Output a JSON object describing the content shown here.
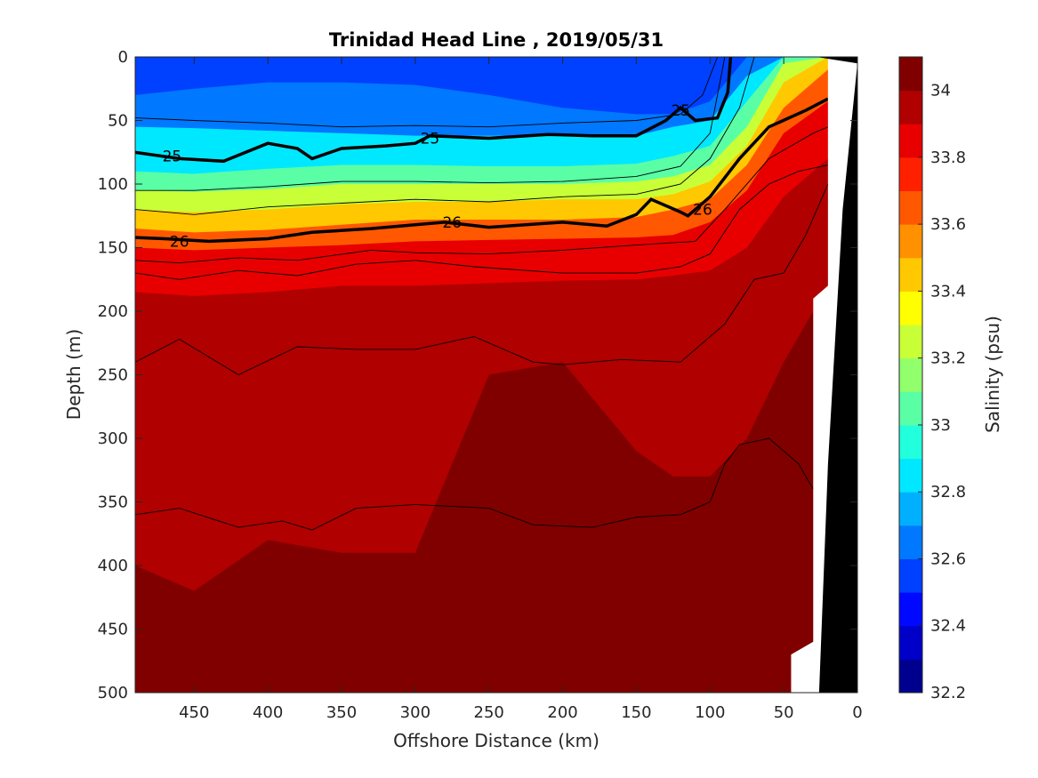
{
  "chart_data": {
    "type": "heatmap",
    "title": "Trinidad Head Line , 2019/05/31",
    "xlabel": "Offshore Distance (km)",
    "ylabel": "Depth (m)",
    "xlim": [
      490,
      0
    ],
    "ylim": [
      0,
      500
    ],
    "x_ticks": [
      450,
      400,
      350,
      300,
      250,
      200,
      150,
      100,
      50,
      0
    ],
    "y_ticks": [
      0,
      50,
      100,
      150,
      200,
      250,
      300,
      350,
      400,
      450,
      500
    ],
    "colorbar": {
      "label": "Salinity (psu)",
      "range": [
        32.2,
        34.1
      ],
      "step": 0.1,
      "ticks": [
        32.2,
        32.4,
        32.6,
        32.8,
        33,
        33.2,
        33.4,
        33.6,
        33.8,
        34
      ],
      "tick_labels": [
        "32.2",
        "32.4",
        "32.6",
        "32.8",
        "33",
        "33.2",
        "33.4",
        "33.6",
        "33.8",
        "34"
      ],
      "colors": [
        "#00008f",
        "#0000c8",
        "#0008ff",
        "#0040ff",
        "#0078ff",
        "#00b0ff",
        "#00e8ff",
        "#22ffdd",
        "#5affa5",
        "#92ff6d",
        "#c8ff37",
        "#ffff00",
        "#ffc800",
        "#ff9000",
        "#ff5800",
        "#ff2000",
        "#e80000",
        "#b00000",
        "#800000"
      ]
    },
    "salinity_levels": [
      {
        "value": 32.6,
        "depth": [
          30,
          25,
          20,
          20,
          22,
          30,
          40,
          45,
          45,
          35,
          0,
          0,
          0
        ]
      },
      {
        "value": 32.8,
        "depth": [
          55,
          56,
          58,
          60,
          62,
          62,
          62,
          62,
          55,
          50,
          15,
          0,
          0
        ]
      },
      {
        "value": 33.0,
        "depth": [
          90,
          92,
          88,
          85,
          85,
          86,
          86,
          84,
          78,
          70,
          35,
          0,
          0
        ]
      },
      {
        "value": 33.2,
        "depth": [
          105,
          106,
          104,
          100,
          100,
          100,
          100,
          98,
          94,
          85,
          55,
          5,
          0
        ]
      },
      {
        "value": 33.4,
        "depth": [
          120,
          122,
          120,
          116,
          114,
          114,
          112,
          112,
          108,
          98,
          70,
          20,
          0
        ]
      },
      {
        "value": 33.6,
        "depth": [
          135,
          138,
          136,
          132,
          128,
          128,
          128,
          126,
          120,
          112,
          85,
          40,
          10
        ]
      },
      {
        "value": 33.8,
        "depth": [
          150,
          152,
          150,
          148,
          145,
          144,
          143,
          142,
          140,
          130,
          105,
          60,
          35
        ]
      },
      {
        "value": 33.9,
        "depth": [
          185,
          188,
          185,
          180,
          180,
          178,
          176,
          175,
          172,
          168,
          150,
          110,
          80
        ]
      },
      {
        "value": 34.0,
        "depth": [
          400,
          420,
          380,
          390,
          390,
          250,
          240,
          310,
          330,
          330,
          300,
          240,
          180
        ]
      }
    ],
    "x_grid": [
      490,
      450,
      400,
      350,
      300,
      250,
      200,
      150,
      125,
      100,
      75,
      50,
      20
    ],
    "density_contours": [
      {
        "value": 25,
        "points": [
          [
            490,
            75
          ],
          [
            460,
            80
          ],
          [
            430,
            82
          ],
          [
            400,
            68
          ],
          [
            380,
            72
          ],
          [
            370,
            80
          ],
          [
            350,
            72
          ],
          [
            320,
            70
          ],
          [
            300,
            68
          ],
          [
            290,
            62
          ],
          [
            250,
            64
          ],
          [
            210,
            61
          ],
          [
            180,
            62
          ],
          [
            150,
            62
          ],
          [
            130,
            50
          ],
          [
            120,
            40
          ],
          [
            110,
            50
          ],
          [
            95,
            48
          ],
          [
            88,
            28
          ],
          [
            86,
            0
          ]
        ],
        "labels": [
          [
            465,
            78
          ],
          [
            290,
            64
          ],
          [
            120,
            42
          ]
        ]
      },
      {
        "value": 26,
        "points": [
          [
            490,
            142
          ],
          [
            470,
            143
          ],
          [
            440,
            145
          ],
          [
            400,
            143
          ],
          [
            370,
            138
          ],
          [
            330,
            135
          ],
          [
            300,
            132
          ],
          [
            280,
            130
          ],
          [
            250,
            134
          ],
          [
            200,
            130
          ],
          [
            170,
            133
          ],
          [
            150,
            124
          ],
          [
            140,
            112
          ],
          [
            120,
            122
          ],
          [
            115,
            125
          ],
          [
            100,
            110
          ],
          [
            80,
            80
          ],
          [
            60,
            55
          ],
          [
            35,
            42
          ],
          [
            20,
            33
          ]
        ],
        "labels": [
          [
            460,
            145
          ],
          [
            275,
            130
          ],
          [
            105,
            120
          ]
        ]
      }
    ],
    "thin_contours": [
      {
        "points": [
          [
            490,
            120
          ],
          [
            450,
            124
          ],
          [
            400,
            118
          ],
          [
            350,
            115
          ],
          [
            300,
            112
          ],
          [
            250,
            114
          ],
          [
            200,
            110
          ],
          [
            150,
            108
          ],
          [
            120,
            100
          ],
          [
            100,
            80
          ],
          [
            80,
            40
          ],
          [
            70,
            0
          ]
        ]
      },
      {
        "points": [
          [
            490,
            105
          ],
          [
            450,
            105
          ],
          [
            400,
            102
          ],
          [
            350,
            98
          ],
          [
            300,
            98
          ],
          [
            250,
            99
          ],
          [
            200,
            98
          ],
          [
            150,
            94
          ],
          [
            120,
            86
          ],
          [
            100,
            60
          ],
          [
            90,
            0
          ]
        ]
      },
      {
        "points": [
          [
            490,
            48
          ],
          [
            450,
            50
          ],
          [
            400,
            52
          ],
          [
            350,
            55
          ],
          [
            300,
            54
          ],
          [
            250,
            55
          ],
          [
            200,
            52
          ],
          [
            150,
            50
          ],
          [
            120,
            45
          ],
          [
            105,
            30
          ],
          [
            95,
            0
          ]
        ]
      },
      {
        "points": [
          [
            490,
            160
          ],
          [
            460,
            162
          ],
          [
            420,
            158
          ],
          [
            380,
            160
          ],
          [
            330,
            152
          ],
          [
            300,
            154
          ],
          [
            250,
            155
          ],
          [
            200,
            152
          ],
          [
            150,
            148
          ],
          [
            110,
            145
          ],
          [
            90,
            120
          ],
          [
            60,
            80
          ],
          [
            30,
            60
          ],
          [
            20,
            55
          ]
        ]
      },
      {
        "points": [
          [
            490,
            170
          ],
          [
            460,
            175
          ],
          [
            420,
            168
          ],
          [
            380,
            172
          ],
          [
            340,
            163
          ],
          [
            300,
            160
          ],
          [
            260,
            165
          ],
          [
            200,
            170
          ],
          [
            150,
            170
          ],
          [
            120,
            165
          ],
          [
            100,
            155
          ],
          [
            80,
            120
          ],
          [
            60,
            100
          ],
          [
            40,
            90
          ],
          [
            20,
            85
          ]
        ]
      },
      {
        "points": [
          [
            490,
            240
          ],
          [
            460,
            222
          ],
          [
            420,
            250
          ],
          [
            380,
            228
          ],
          [
            340,
            230
          ],
          [
            300,
            230
          ],
          [
            260,
            220
          ],
          [
            220,
            240
          ],
          [
            200,
            242
          ],
          [
            160,
            238
          ],
          [
            120,
            240
          ],
          [
            90,
            210
          ],
          [
            70,
            175
          ],
          [
            50,
            170
          ],
          [
            35,
            140
          ],
          [
            20,
            100
          ]
        ]
      },
      {
        "points": [
          [
            490,
            360
          ],
          [
            460,
            355
          ],
          [
            420,
            370
          ],
          [
            390,
            365
          ],
          [
            370,
            372
          ],
          [
            340,
            355
          ],
          [
            300,
            352
          ],
          [
            250,
            355
          ],
          [
            220,
            368
          ],
          [
            180,
            370
          ],
          [
            150,
            362
          ],
          [
            120,
            360
          ],
          [
            100,
            350
          ],
          [
            90,
            320
          ],
          [
            80,
            305
          ],
          [
            60,
            300
          ],
          [
            40,
            320
          ],
          [
            30,
            340
          ]
        ]
      }
    ],
    "land_profile": [
      [
        28,
        0
      ],
      [
        0,
        0
      ],
      [
        0,
        500
      ],
      [
        26,
        500
      ],
      [
        20,
        320
      ],
      [
        10,
        120
      ],
      [
        0,
        5
      ]
    ]
  }
}
